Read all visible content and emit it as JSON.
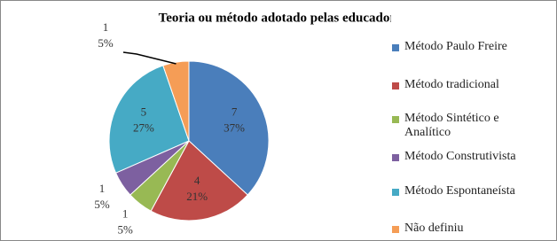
{
  "chart_data": {
    "type": "pie",
    "title": "Teoria ou método adotado pelas educadoras",
    "categories": [
      "Método Paulo Freire",
      "Método tradicional",
      "Método Sintético e Analítico",
      "Método Construtivista",
      "Método Espontaneísta",
      "Não definiu"
    ],
    "values": [
      7,
      4,
      1,
      1,
      5,
      1
    ],
    "percent_labels": [
      "37%",
      "21%",
      "5%",
      "5%",
      "27%",
      "5%"
    ],
    "colors": [
      "#4a7ebb",
      "#be4b48",
      "#98b954",
      "#7d60a0",
      "#46aac5",
      "#f59d56"
    ],
    "legend": "right"
  }
}
